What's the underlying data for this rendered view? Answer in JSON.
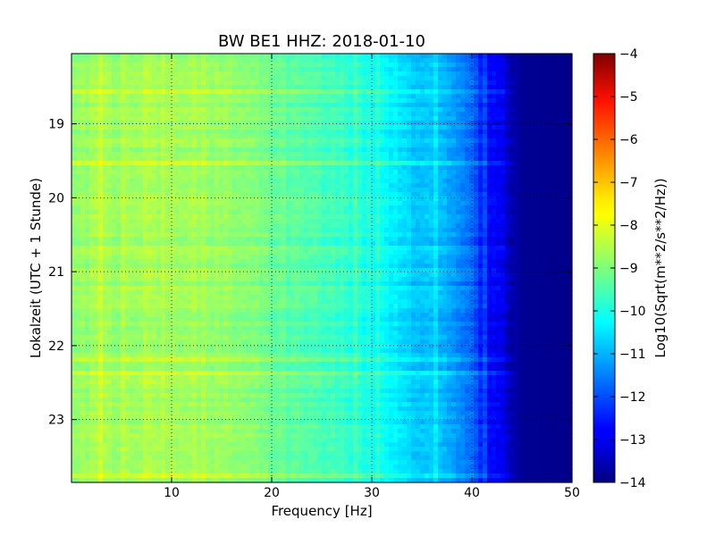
{
  "chart_data": {
    "type": "heatmap",
    "title": "BW BE1 HHZ: 2018-01-10",
    "xlabel": "Frequency [Hz]",
    "ylabel": "Lokalzeit (UTC + 1 Stunde)",
    "colorbar_label": "Log10(Sqrt(m**2/s**2/Hz))",
    "colormap": "jet",
    "xlim": [
      0,
      50
    ],
    "ylim": [
      18.05,
      23.85
    ],
    "x_ticks": [
      10,
      20,
      30,
      40,
      50
    ],
    "x_tick_labels": [
      "10",
      "20",
      "30",
      "40",
      "50"
    ],
    "y_ticks": [
      19,
      20,
      21,
      22,
      23
    ],
    "y_tick_labels": [
      "19",
      "20",
      "21",
      "22",
      "23"
    ],
    "color_range": [
      -14,
      -4
    ],
    "colorbar_ticks": [
      -4,
      -5,
      -6,
      -7,
      -8,
      -9,
      -10,
      -11,
      -12,
      -13,
      -14
    ],
    "colorbar_tick_labels": [
      "−4",
      "−5",
      "−6",
      "−7",
      "−8",
      "−9",
      "−10",
      "−11",
      "−12",
      "−13",
      "−14"
    ],
    "grid": true,
    "grid_style": "dotted",
    "frequency_profile": {
      "frequency_hz": [
        0,
        2,
        5,
        8,
        10,
        12,
        15,
        18,
        20,
        22,
        25,
        28,
        30,
        32,
        33,
        35,
        37,
        38,
        40,
        41,
        42,
        43,
        44,
        45,
        50
      ],
      "log10_amplitude": [
        -8.8,
        -8.7,
        -8.7,
        -8.6,
        -8.6,
        -8.7,
        -8.8,
        -9.0,
        -9.2,
        -9.4,
        -9.6,
        -9.8,
        -10.1,
        -10.4,
        -10.6,
        -10.8,
        -11.0,
        -11.3,
        -11.8,
        -12.4,
        -12.8,
        -13.1,
        -13.5,
        -13.8,
        -13.9
      ]
    }
  }
}
